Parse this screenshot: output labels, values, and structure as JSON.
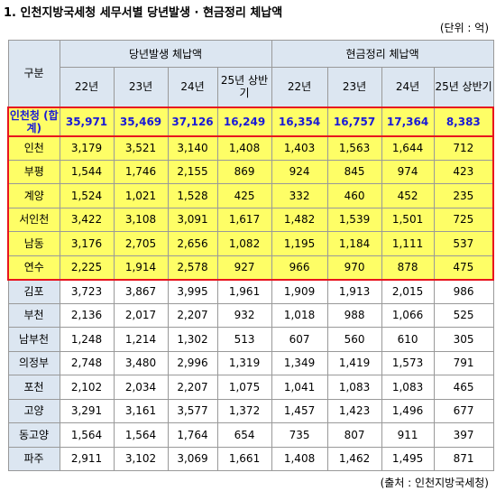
{
  "header": {
    "title": "1. 인천지방국세청 세무서별 당년발생 · 현금정리 체납액",
    "unit": "(단위 : 억)"
  },
  "table": {
    "corner": "구분",
    "groups": [
      "당년발생 체납액",
      "현금정리 체납액"
    ],
    "columns": [
      "22년",
      "23년",
      "24년",
      "25년 상반기",
      "22년",
      "23년",
      "24년",
      "25년 상반기"
    ],
    "rows": [
      [
        "인천청 (합계)",
        "35,971",
        "35,469",
        "37,126",
        "16,249",
        "16,354",
        "16,757",
        "17,364",
        "8,383"
      ],
      [
        "인천",
        "3,179",
        "3,521",
        "3,140",
        "1,408",
        "1,403",
        "1,563",
        "1,644",
        "712"
      ],
      [
        "부평",
        "1,544",
        "1,746",
        "2,155",
        "869",
        "924",
        "845",
        "974",
        "423"
      ],
      [
        "계양",
        "1,524",
        "1,021",
        "1,528",
        "425",
        "332",
        "460",
        "452",
        "235"
      ],
      [
        "서인천",
        "3,422",
        "3,108",
        "3,091",
        "1,617",
        "1,482",
        "1,539",
        "1,501",
        "725"
      ],
      [
        "남동",
        "3,176",
        "2,705",
        "2,656",
        "1,082",
        "1,195",
        "1,184",
        "1,111",
        "537"
      ],
      [
        "연수",
        "2,225",
        "1,914",
        "2,578",
        "927",
        "966",
        "970",
        "878",
        "475"
      ],
      [
        "김포",
        "3,723",
        "3,867",
        "3,995",
        "1,961",
        "1,909",
        "1,913",
        "2,015",
        "986"
      ],
      [
        "부천",
        "2,136",
        "2,017",
        "2,207",
        "932",
        "1,018",
        "988",
        "1,066",
        "525"
      ],
      [
        "남부천",
        "1,248",
        "1,214",
        "1,302",
        "513",
        "607",
        "560",
        "610",
        "305"
      ],
      [
        "의정부",
        "2,748",
        "3,480",
        "2,996",
        "1,319",
        "1,349",
        "1,419",
        "1,573",
        "791"
      ],
      [
        "포천",
        "2,102",
        "2,034",
        "2,207",
        "1,075",
        "1,041",
        "1,083",
        "1,083",
        "465"
      ],
      [
        "고양",
        "3,291",
        "3,161",
        "3,577",
        "1,372",
        "1,457",
        "1,423",
        "1,496",
        "677"
      ],
      [
        "동고양",
        "1,564",
        "1,564",
        "1,764",
        "654",
        "735",
        "807",
        "911",
        "397"
      ],
      [
        "파주",
        "2,911",
        "3,102",
        "3,069",
        "1,661",
        "1,408",
        "1,462",
        "1,495",
        "871"
      ]
    ]
  },
  "footer": {
    "source": "(출처 : 인천지방국세청)"
  }
}
